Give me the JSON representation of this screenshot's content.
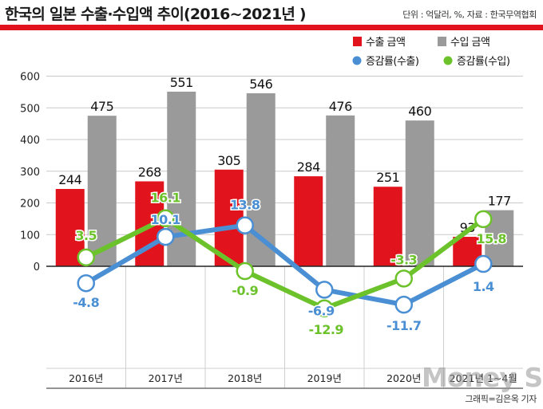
{
  "header": {
    "title": "한국의 일본 수출·수입액 추이(2016~2021년 )",
    "source": "단위 : 억달러, %, 자료 : 한국무역협회"
  },
  "footer": {
    "credit": "그래픽=김은옥 기자",
    "watermark": "Money S"
  },
  "colors": {
    "export_bar": "#e1131d",
    "import_bar": "#9a9a9a",
    "export_growth": "#4a8fd4",
    "import_growth": "#6cc22a",
    "accent": "#e1131d"
  },
  "chart_data": {
    "type": "bar",
    "categories": [
      "2016년",
      "2017년",
      "2018년",
      "2019년",
      "2020년",
      "2021년 1~4월"
    ],
    "ylim": [
      0,
      600
    ],
    "yticks": [
      "0",
      "100",
      "200",
      "300",
      "400",
      "500",
      "600"
    ],
    "grid": true,
    "legend_position": "top-right",
    "series": [
      {
        "name": "수출 금액",
        "type": "bar",
        "values": [
          244,
          268,
          305,
          284,
          251,
          93
        ],
        "labels": [
          "244",
          "268",
          "305",
          "284",
          "251",
          "93"
        ]
      },
      {
        "name": "수입 금액",
        "type": "bar",
        "values": [
          475,
          551,
          546,
          476,
          460,
          177
        ],
        "labels": [
          "475",
          "551",
          "546",
          "476",
          "460",
          "177"
        ]
      },
      {
        "name": "증감률(수출)",
        "type": "line",
        "values": [
          -4.8,
          10.1,
          13.8,
          -6.9,
          -11.7,
          1.4
        ],
        "labels": [
          "-4.8",
          "10.1",
          "13.8",
          "-6.9",
          "-11.7",
          "1.4"
        ]
      },
      {
        "name": "증감률(수입)",
        "type": "line",
        "values": [
          3.5,
          16.1,
          -0.9,
          -12.9,
          -3.3,
          15.8
        ],
        "labels": [
          "3.5",
          "16.1",
          "-0.9",
          "-12.9",
          "-3.3",
          "15.8"
        ]
      }
    ]
  }
}
